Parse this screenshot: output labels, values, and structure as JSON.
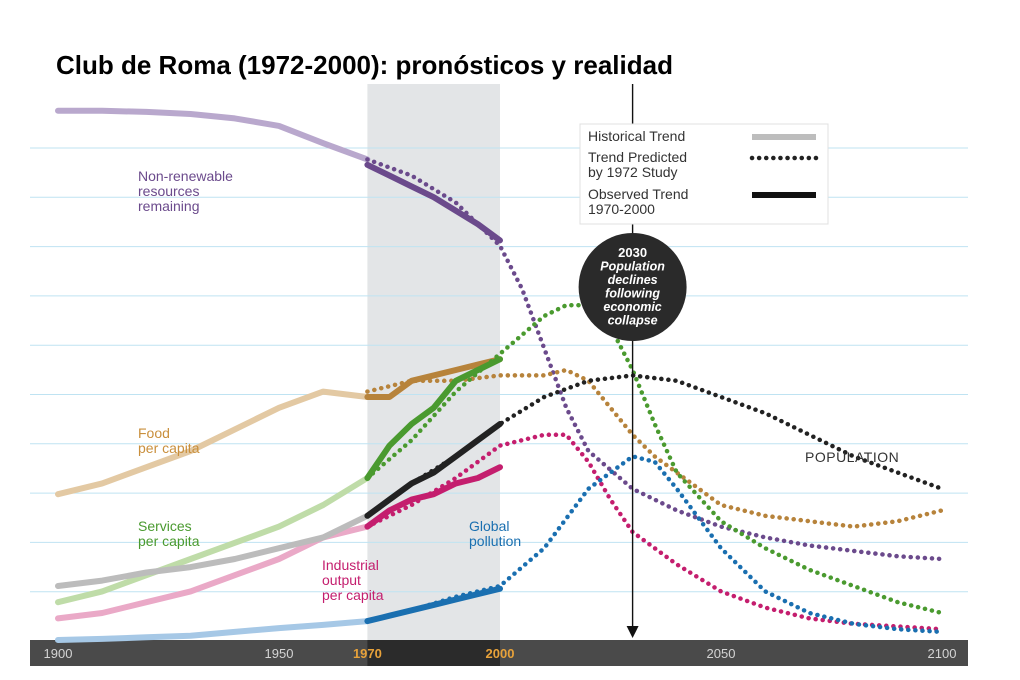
{
  "page": {
    "title": "Club de Roma (1972-2000): pronósticos y realidad"
  },
  "chart_data": {
    "type": "line",
    "title": "Club de Roma (1972-2000): pronósticos y realidad",
    "xlim": [
      1900,
      2100
    ],
    "x_ticks": [
      {
        "value": 1900,
        "label": "1900",
        "highlight": false
      },
      {
        "value": 1950,
        "label": "1950",
        "highlight": false
      },
      {
        "value": 1970,
        "label": "1970",
        "highlight": true
      },
      {
        "value": 2000,
        "label": "2000",
        "highlight": true
      },
      {
        "value": 2050,
        "label": "2050",
        "highlight": false
      },
      {
        "value": 2100,
        "label": "2100",
        "highlight": false
      }
    ],
    "ylim": [
      0,
      10
    ],
    "grid": true,
    "shaded_band": {
      "from": 1970,
      "to": 2000
    },
    "event_marker": {
      "x": 2030,
      "lines": [
        "2030",
        "Population",
        "declines",
        "following",
        "economic",
        "collapse"
      ]
    },
    "legend": {
      "position": "top-right",
      "items": [
        {
          "lines": [
            "Historical Trend"
          ],
          "style": "historical"
        },
        {
          "lines": [
            "Trend Predicted",
            "by 1972 Study"
          ],
          "style": "predicted"
        },
        {
          "lines": [
            "Observed Trend",
            "1970-2000"
          ],
          "style": "observed"
        }
      ]
    },
    "series": [
      {
        "name": "Non-renewable resources remaining",
        "label_lines": [
          "Non-renewable",
          "resources",
          "remaining"
        ],
        "color": "#6b4a8c",
        "light_color": "#b9a8cd",
        "label_color": "#6b4a8c",
        "historical": [
          [
            1900,
            9.8
          ],
          [
            1910,
            9.8
          ],
          [
            1920,
            9.78
          ],
          [
            1930,
            9.74
          ],
          [
            1940,
            9.66
          ],
          [
            1950,
            9.52
          ],
          [
            1960,
            9.2
          ],
          [
            1970,
            8.9
          ]
        ],
        "observed": [
          [
            1970,
            8.8
          ],
          [
            1975,
            8.6
          ],
          [
            1980,
            8.4
          ],
          [
            1985,
            8.2
          ],
          [
            1990,
            7.95
          ],
          [
            1995,
            7.7
          ],
          [
            2000,
            7.4
          ]
        ],
        "predicted": [
          [
            1970,
            8.9
          ],
          [
            1980,
            8.6
          ],
          [
            1990,
            8.1
          ],
          [
            2000,
            7.3
          ],
          [
            2005,
            6.5
          ],
          [
            2010,
            5.4
          ],
          [
            2015,
            4.3
          ],
          [
            2020,
            3.5
          ],
          [
            2030,
            2.8
          ],
          [
            2040,
            2.4
          ],
          [
            2050,
            2.1
          ],
          [
            2060,
            1.9
          ],
          [
            2070,
            1.75
          ],
          [
            2080,
            1.65
          ],
          [
            2090,
            1.55
          ],
          [
            2100,
            1.5
          ]
        ]
      },
      {
        "name": "Food per capita",
        "label_lines": [
          "Food",
          "per capita"
        ],
        "color": "#b7833b",
        "light_color": "#e3c9a3",
        "label_color": "#c98f3c",
        "historical": [
          [
            1900,
            2.7
          ],
          [
            1910,
            2.9
          ],
          [
            1920,
            3.2
          ],
          [
            1930,
            3.5
          ],
          [
            1940,
            3.9
          ],
          [
            1950,
            4.3
          ],
          [
            1960,
            4.6
          ],
          [
            1970,
            4.5
          ]
        ],
        "observed": [
          [
            1970,
            4.5
          ],
          [
            1975,
            4.5
          ],
          [
            1980,
            4.8
          ],
          [
            1985,
            4.9
          ],
          [
            1990,
            5.0
          ],
          [
            1995,
            5.1
          ],
          [
            2000,
            5.2
          ]
        ],
        "predicted": [
          [
            1970,
            4.6
          ],
          [
            1980,
            4.8
          ],
          [
            1990,
            4.8
          ],
          [
            2000,
            4.9
          ],
          [
            2010,
            4.9
          ],
          [
            2015,
            5.0
          ],
          [
            2020,
            4.8
          ],
          [
            2025,
            4.3
          ],
          [
            2030,
            3.8
          ],
          [
            2035,
            3.4
          ],
          [
            2040,
            3.1
          ],
          [
            2050,
            2.5
          ],
          [
            2060,
            2.3
          ],
          [
            2070,
            2.2
          ],
          [
            2080,
            2.1
          ],
          [
            2090,
            2.2
          ],
          [
            2100,
            2.4
          ]
        ]
      },
      {
        "name": "Services per capita",
        "label_lines": [
          "Services",
          "per capita"
        ],
        "color": "#4a9a2f",
        "light_color": "#bfdca8",
        "label_color": "#4a9a2f",
        "historical": [
          [
            1900,
            0.7
          ],
          [
            1910,
            0.9
          ],
          [
            1920,
            1.2
          ],
          [
            1930,
            1.5
          ],
          [
            1940,
            1.8
          ],
          [
            1950,
            2.1
          ],
          [
            1960,
            2.5
          ],
          [
            1970,
            3.0
          ]
        ],
        "observed": [
          [
            1970,
            3.0
          ],
          [
            1975,
            3.6
          ],
          [
            1980,
            4.0
          ],
          [
            1985,
            4.3
          ],
          [
            1990,
            4.8
          ],
          [
            1995,
            5.0
          ],
          [
            2000,
            5.2
          ]
        ],
        "predicted": [
          [
            1970,
            3.0
          ],
          [
            1980,
            3.7
          ],
          [
            1990,
            4.6
          ],
          [
            2000,
            5.3
          ],
          [
            2010,
            6.0
          ],
          [
            2015,
            6.2
          ],
          [
            2020,
            6.2
          ],
          [
            2025,
            5.8
          ],
          [
            2030,
            5.0
          ],
          [
            2035,
            4.0
          ],
          [
            2040,
            3.1
          ],
          [
            2050,
            2.2
          ],
          [
            2060,
            1.7
          ],
          [
            2070,
            1.3
          ],
          [
            2080,
            1.0
          ],
          [
            2090,
            0.7
          ],
          [
            2100,
            0.5
          ]
        ]
      },
      {
        "name": "Industrial output per capita",
        "label_lines": [
          "Industrial",
          "output",
          "per capita"
        ],
        "color": "#c41e6e",
        "light_color": "#eaa9c7",
        "label_color": "#c41e6e",
        "historical": [
          [
            1900,
            0.4
          ],
          [
            1910,
            0.5
          ],
          [
            1920,
            0.7
          ],
          [
            1930,
            0.9
          ],
          [
            1940,
            1.2
          ],
          [
            1950,
            1.5
          ],
          [
            1960,
            1.9
          ],
          [
            1970,
            2.1
          ]
        ],
        "observed": [
          [
            1970,
            2.1
          ],
          [
            1975,
            2.4
          ],
          [
            1980,
            2.6
          ],
          [
            1985,
            2.7
          ],
          [
            1990,
            2.9
          ],
          [
            1995,
            3.0
          ],
          [
            2000,
            3.2
          ]
        ],
        "predicted": [
          [
            1970,
            2.1
          ],
          [
            1980,
            2.5
          ],
          [
            1990,
            3.0
          ],
          [
            2000,
            3.6
          ],
          [
            2010,
            3.8
          ],
          [
            2015,
            3.8
          ],
          [
            2020,
            3.3
          ],
          [
            2025,
            2.6
          ],
          [
            2030,
            2.0
          ],
          [
            2040,
            1.4
          ],
          [
            2050,
            0.9
          ],
          [
            2060,
            0.6
          ],
          [
            2070,
            0.4
          ],
          [
            2080,
            0.3
          ],
          [
            2090,
            0.25
          ],
          [
            2100,
            0.2
          ]
        ]
      },
      {
        "name": "Global pollution",
        "label_lines": [
          "Global",
          "pollution"
        ],
        "color": "#1a6fb0",
        "light_color": "#a6c8e6",
        "label_color": "#1a6fb0",
        "historical": [
          [
            1900,
            0.0
          ],
          [
            1910,
            0.02
          ],
          [
            1920,
            0.05
          ],
          [
            1930,
            0.08
          ],
          [
            1940,
            0.15
          ],
          [
            1950,
            0.22
          ],
          [
            1960,
            0.28
          ],
          [
            1970,
            0.35
          ]
        ],
        "observed": [
          [
            1970,
            0.35
          ],
          [
            1975,
            0.45
          ],
          [
            1980,
            0.55
          ],
          [
            1985,
            0.65
          ],
          [
            1990,
            0.75
          ],
          [
            1995,
            0.85
          ],
          [
            2000,
            0.95
          ]
        ],
        "predicted": [
          [
            1970,
            0.35
          ],
          [
            1980,
            0.55
          ],
          [
            1990,
            0.8
          ],
          [
            2000,
            1.0
          ],
          [
            2010,
            1.7
          ],
          [
            2020,
            2.8
          ],
          [
            2030,
            3.4
          ],
          [
            2035,
            3.3
          ],
          [
            2040,
            2.8
          ],
          [
            2050,
            1.7
          ],
          [
            2060,
            0.9
          ],
          [
            2070,
            0.5
          ],
          [
            2080,
            0.3
          ],
          [
            2090,
            0.2
          ],
          [
            2100,
            0.15
          ]
        ]
      },
      {
        "name": "POPULATION",
        "label_lines": [
          "POPULATION"
        ],
        "color": "#222222",
        "light_color": "#bcbcbc",
        "label_color": "#333333",
        "historical": [
          [
            1900,
            1.0
          ],
          [
            1910,
            1.1
          ],
          [
            1920,
            1.25
          ],
          [
            1930,
            1.35
          ],
          [
            1940,
            1.5
          ],
          [
            1950,
            1.7
          ],
          [
            1960,
            1.9
          ],
          [
            1970,
            2.3
          ]
        ],
        "observed": [
          [
            1970,
            2.3
          ],
          [
            1975,
            2.6
          ],
          [
            1980,
            2.9
          ],
          [
            1985,
            3.1
          ],
          [
            1990,
            3.4
          ],
          [
            1995,
            3.7
          ],
          [
            2000,
            4.0
          ]
        ],
        "predicted": [
          [
            1970,
            2.3
          ],
          [
            1980,
            2.9
          ],
          [
            1990,
            3.4
          ],
          [
            2000,
            4.0
          ],
          [
            2010,
            4.5
          ],
          [
            2020,
            4.8
          ],
          [
            2030,
            4.9
          ],
          [
            2040,
            4.8
          ],
          [
            2050,
            4.5
          ],
          [
            2060,
            4.2
          ],
          [
            2070,
            3.8
          ],
          [
            2080,
            3.4
          ],
          [
            2090,
            3.1
          ],
          [
            2100,
            2.8
          ]
        ]
      }
    ]
  }
}
